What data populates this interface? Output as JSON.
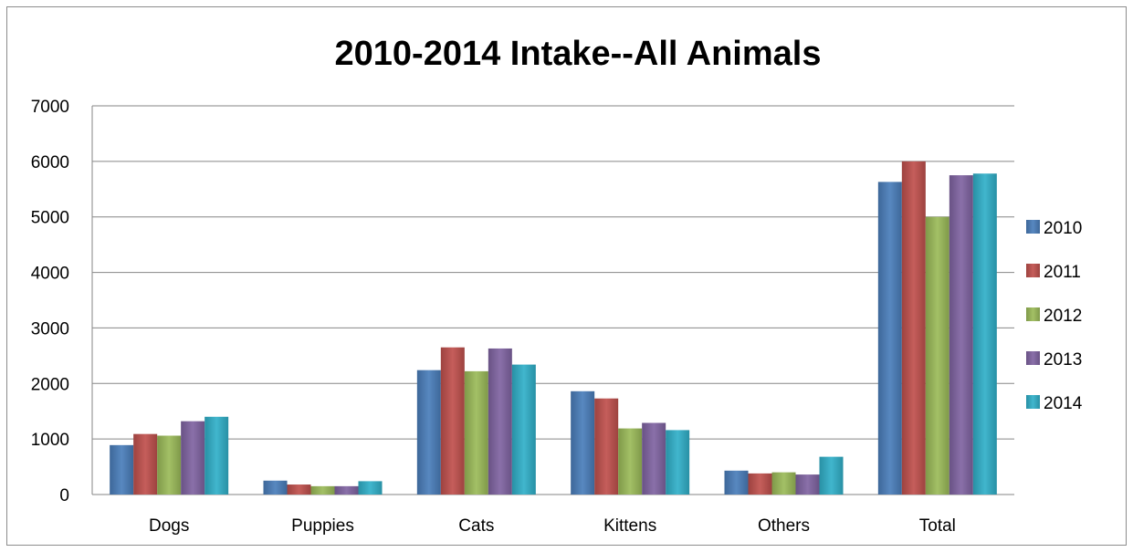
{
  "chart_data": {
    "type": "bar",
    "title": "2010-2014 Intake--All Animals",
    "xlabel": "",
    "ylabel": "",
    "categories": [
      "Dogs",
      "Puppies",
      "Cats",
      "Kittens",
      "Others",
      "Total"
    ],
    "ylim": [
      0,
      7000
    ],
    "yticks": [
      "0",
      "1000",
      "2000",
      "3000",
      "4000",
      "5000",
      "6000",
      "7000"
    ],
    "grid": true,
    "legend_position": "right",
    "series": [
      {
        "name": "2010",
        "color": "#4a7ebb",
        "values": [
          890,
          250,
          2240,
          1860,
          430,
          5630
        ]
      },
      {
        "name": "2011",
        "color": "#c0504d",
        "values": [
          1090,
          180,
          2650,
          1730,
          380,
          6000
        ]
      },
      {
        "name": "2012",
        "color": "#9bbb59",
        "values": [
          1060,
          150,
          2220,
          1190,
          400,
          5000
        ]
      },
      {
        "name": "2013",
        "color": "#8064a2",
        "values": [
          1320,
          150,
          2630,
          1290,
          360,
          5750
        ]
      },
      {
        "name": "2014",
        "color": "#31b0c9",
        "values": [
          1400,
          240,
          2340,
          1160,
          680,
          5780
        ]
      }
    ]
  }
}
